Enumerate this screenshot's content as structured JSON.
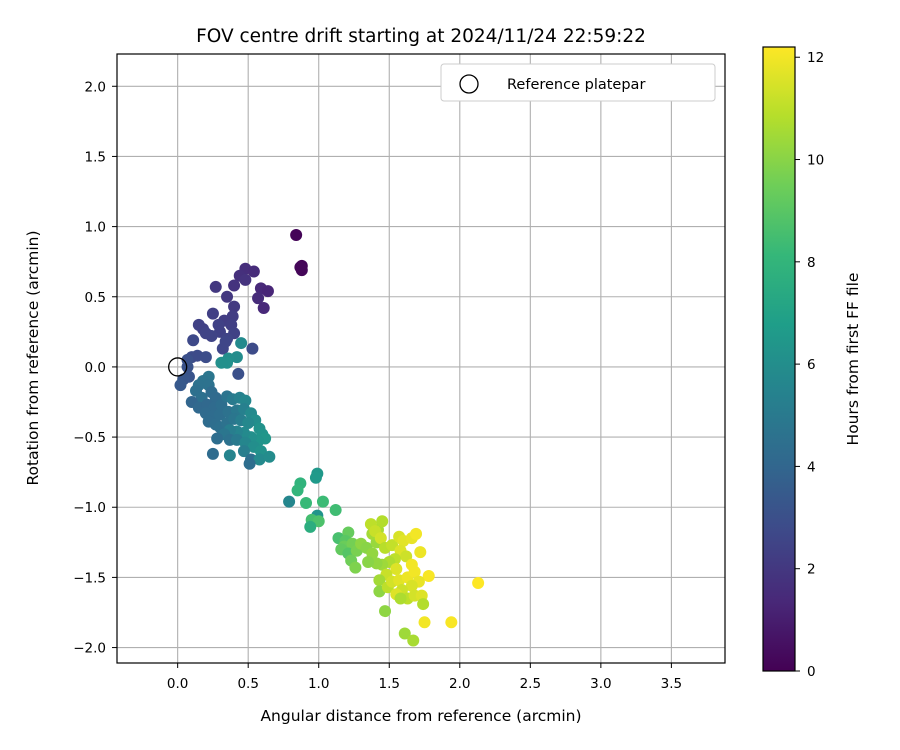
{
  "chart_data": {
    "type": "scatter",
    "title": "FOV centre drift starting at 2024/11/24 22:59:22",
    "xlabel": "Angular distance from reference (arcmin)",
    "ylabel": "Rotation from reference (arcmin)",
    "xlim": [
      -0.43,
      3.88
    ],
    "ylim": [
      -2.11,
      2.23
    ],
    "x_ticks": [
      0.0,
      0.5,
      1.0,
      1.5,
      2.0,
      2.5,
      3.0,
      3.5
    ],
    "x_tick_labels": [
      "0.0",
      "0.5",
      "1.0",
      "1.5",
      "2.0",
      "2.5",
      "3.0",
      "3.5"
    ],
    "y_ticks": [
      2.0,
      1.5,
      1.0,
      0.5,
      0.0,
      -0.5,
      -1.0,
      -1.5,
      -2.0
    ],
    "y_tick_labels": [
      "2.0",
      "1.5",
      "1.0",
      "0.5",
      "0.0",
      "−0.5",
      "−1.0",
      "−1.5",
      "−2.0"
    ],
    "grid": true,
    "legend": {
      "entries": [
        "Reference platepar"
      ],
      "placement": "upper right"
    },
    "reference_point": {
      "x": 0.0,
      "y": 0.0
    },
    "colorbar": {
      "label": "Hours from first FF file",
      "cmap": "viridis",
      "range": [
        0,
        12.2
      ],
      "ticks": [
        0,
        2,
        4,
        6,
        8,
        10,
        12
      ],
      "tick_labels": [
        "0",
        "2",
        "4",
        "6",
        "8",
        "10",
        "12"
      ]
    },
    "colors": {
      "cmap_stops": [
        "#440154",
        "#482878",
        "#3e4989",
        "#31688e",
        "#26828e",
        "#1f9e89",
        "#35b779",
        "#6ece58",
        "#b5de2b",
        "#fde725"
      ]
    },
    "points": [
      [
        0.84,
        0.94,
        0.1
      ],
      [
        0.88,
        0.72,
        0.1
      ],
      [
        0.88,
        0.69,
        0.2
      ],
      [
        0.87,
        0.71,
        0.2
      ],
      [
        0.48,
        0.7,
        1.6
      ],
      [
        0.54,
        0.68,
        1.5
      ],
      [
        0.44,
        0.65,
        1.7
      ],
      [
        0.4,
        0.58,
        1.8
      ],
      [
        0.48,
        0.62,
        1.8
      ],
      [
        0.59,
        0.56,
        1.4
      ],
      [
        0.64,
        0.54,
        1.3
      ],
      [
        0.57,
        0.49,
        1.5
      ],
      [
        0.61,
        0.42,
        1.4
      ],
      [
        0.27,
        0.57,
        2.0
      ],
      [
        0.35,
        0.5,
        2.0
      ],
      [
        0.4,
        0.43,
        2.1
      ],
      [
        0.39,
        0.36,
        2.2
      ],
      [
        0.33,
        0.33,
        2.2
      ],
      [
        0.25,
        0.38,
        2.3
      ],
      [
        0.38,
        0.3,
        2.3
      ],
      [
        0.15,
        0.3,
        2.4
      ],
      [
        0.18,
        0.27,
        2.4
      ],
      [
        0.29,
        0.3,
        2.4
      ],
      [
        0.3,
        0.25,
        2.4
      ],
      [
        0.2,
        0.24,
        2.5
      ],
      [
        0.4,
        0.24,
        2.4
      ],
      [
        0.35,
        0.2,
        2.5
      ],
      [
        0.24,
        0.22,
        2.5
      ],
      [
        0.32,
        0.13,
        2.6
      ],
      [
        0.34,
        0.18,
        2.6
      ],
      [
        0.53,
        0.13,
        2.8
      ],
      [
        0.11,
        0.19,
        2.7
      ],
      [
        0.1,
        0.07,
        2.8
      ],
      [
        0.14,
        0.08,
        2.8
      ],
      [
        0.2,
        0.07,
        2.9
      ],
      [
        0.07,
        0.05,
        3.0
      ],
      [
        0.45,
        0.17,
        5.8
      ],
      [
        0.42,
        0.07,
        5.9
      ],
      [
        0.36,
        0.06,
        6.0
      ],
      [
        0.35,
        0.03,
        6.1
      ],
      [
        0.31,
        0.03,
        6.1
      ],
      [
        0.43,
        -0.05,
        3.0
      ],
      [
        0.07,
        0.0,
        3.1
      ],
      [
        0.08,
        -0.07,
        3.2
      ],
      [
        0.04,
        -0.09,
        3.3
      ],
      [
        0.02,
        -0.13,
        3.4
      ],
      [
        0.22,
        -0.07,
        4.8
      ],
      [
        0.18,
        -0.1,
        4.7
      ],
      [
        0.15,
        -0.13,
        4.6
      ],
      [
        0.22,
        -0.13,
        4.6
      ],
      [
        0.13,
        -0.17,
        4.5
      ],
      [
        0.17,
        -0.22,
        4.5
      ],
      [
        0.24,
        -0.18,
        4.3
      ],
      [
        0.27,
        -0.22,
        4.2
      ],
      [
        0.1,
        -0.25,
        4.0
      ],
      [
        0.15,
        -0.29,
        4.1
      ],
      [
        0.21,
        -0.27,
        4.1
      ],
      [
        0.26,
        -0.29,
        4.2
      ],
      [
        0.31,
        -0.27,
        4.4
      ],
      [
        0.35,
        -0.21,
        4.7
      ],
      [
        0.39,
        -0.23,
        5.0
      ],
      [
        0.44,
        -0.22,
        5.3
      ],
      [
        0.48,
        -0.24,
        5.6
      ],
      [
        0.2,
        -0.33,
        4.2
      ],
      [
        0.25,
        -0.35,
        4.3
      ],
      [
        0.3,
        -0.34,
        4.4
      ],
      [
        0.36,
        -0.32,
        4.6
      ],
      [
        0.42,
        -0.31,
        4.9
      ],
      [
        0.47,
        -0.3,
        5.3
      ],
      [
        0.52,
        -0.33,
        5.8
      ],
      [
        0.55,
        -0.38,
        6.0
      ],
      [
        0.22,
        -0.39,
        4.3
      ],
      [
        0.27,
        -0.41,
        4.4
      ],
      [
        0.3,
        -0.43,
        4.5
      ],
      [
        0.35,
        -0.4,
        4.6
      ],
      [
        0.4,
        -0.37,
        4.8
      ],
      [
        0.45,
        -0.38,
        5.2
      ],
      [
        0.5,
        -0.4,
        5.7
      ],
      [
        0.58,
        -0.44,
        6.2
      ],
      [
        0.6,
        -0.48,
        6.3
      ],
      [
        0.62,
        -0.51,
        6.4
      ],
      [
        0.57,
        -0.53,
        6.3
      ],
      [
        0.52,
        -0.5,
        6.1
      ],
      [
        0.47,
        -0.47,
        5.8
      ],
      [
        0.42,
        -0.46,
        5.5
      ],
      [
        0.37,
        -0.45,
        5.2
      ],
      [
        0.33,
        -0.48,
        4.8
      ],
      [
        0.37,
        -0.52,
        4.6
      ],
      [
        0.28,
        -0.51,
        4.4
      ],
      [
        0.42,
        -0.52,
        5.0
      ],
      [
        0.48,
        -0.54,
        5.6
      ],
      [
        0.54,
        -0.57,
        6.0
      ],
      [
        0.59,
        -0.6,
        6.2
      ],
      [
        0.25,
        -0.62,
        4.3
      ],
      [
        0.37,
        -0.63,
        5.5
      ],
      [
        0.47,
        -0.6,
        5.2
      ],
      [
        0.52,
        -0.66,
        4.5
      ],
      [
        0.58,
        -0.66,
        5.8
      ],
      [
        0.51,
        -0.69,
        4.4
      ],
      [
        0.65,
        -0.64,
        5.9
      ],
      [
        0.79,
        -0.96,
        5.6
      ],
      [
        0.99,
        -0.76,
        6.5
      ],
      [
        0.98,
        -0.79,
        6.6
      ],
      [
        0.87,
        -0.83,
        7.9
      ],
      [
        0.85,
        -0.88,
        8.0
      ],
      [
        0.91,
        -0.97,
        8.2
      ],
      [
        1.03,
        -0.96,
        8.3
      ],
      [
        1.12,
        -1.02,
        8.4
      ],
      [
        0.99,
        -1.06,
        6.3
      ],
      [
        0.95,
        -1.09,
        8.5
      ],
      [
        1.0,
        -1.1,
        8.7
      ],
      [
        0.94,
        -1.14,
        7.6
      ],
      [
        1.14,
        -1.22,
        8.6
      ],
      [
        1.21,
        -1.18,
        9.3
      ],
      [
        1.19,
        -1.24,
        9.0
      ],
      [
        1.18,
        -1.28,
        9.4
      ],
      [
        1.24,
        -1.26,
        9.6
      ],
      [
        1.16,
        -1.3,
        9.2
      ],
      [
        1.21,
        -1.33,
        8.9
      ],
      [
        1.27,
        -1.31,
        9.7
      ],
      [
        1.23,
        -1.38,
        9.5
      ],
      [
        1.26,
        -1.43,
        9.8
      ],
      [
        1.3,
        -1.26,
        10.1
      ],
      [
        1.34,
        -1.29,
        10.0
      ],
      [
        1.38,
        -1.33,
        10.2
      ],
      [
        1.41,
        -1.25,
        10.3
      ],
      [
        1.38,
        -1.19,
        10.5
      ],
      [
        1.42,
        -1.16,
        10.6
      ],
      [
        1.45,
        -1.1,
        10.8
      ],
      [
        1.37,
        -1.12,
        11.0
      ],
      [
        1.4,
        -1.17,
        11.2
      ],
      [
        1.44,
        -1.22,
        11.4
      ],
      [
        1.47,
        -1.29,
        10.9
      ],
      [
        1.52,
        -1.27,
        11.1
      ],
      [
        1.57,
        -1.21,
        11.5
      ],
      [
        1.6,
        -1.24,
        11.7
      ],
      [
        1.66,
        -1.22,
        11.8
      ],
      [
        1.69,
        -1.19,
        12.0
      ],
      [
        1.58,
        -1.31,
        11.6
      ],
      [
        1.62,
        -1.35,
        11.3
      ],
      [
        1.54,
        -1.37,
        11.0
      ],
      [
        1.5,
        -1.39,
        10.7
      ],
      [
        1.45,
        -1.41,
        10.4
      ],
      [
        1.41,
        -1.4,
        10.2
      ],
      [
        1.35,
        -1.39,
        10.0
      ],
      [
        1.72,
        -1.32,
        11.9
      ],
      [
        1.66,
        -1.41,
        12.0
      ],
      [
        1.55,
        -1.44,
        11.6
      ],
      [
        1.48,
        -1.48,
        11.2
      ],
      [
        1.43,
        -1.52,
        10.5
      ],
      [
        1.43,
        -1.6,
        10.1
      ],
      [
        1.49,
        -1.57,
        11.0
      ],
      [
        1.52,
        -1.53,
        11.4
      ],
      [
        1.57,
        -1.52,
        11.7
      ],
      [
        1.63,
        -1.5,
        11.9
      ],
      [
        1.68,
        -1.46,
        12.0
      ],
      [
        1.78,
        -1.49,
        12.1
      ],
      [
        1.71,
        -1.53,
        11.8
      ],
      [
        1.66,
        -1.56,
        11.5
      ],
      [
        1.59,
        -1.59,
        11.3
      ],
      [
        1.55,
        -1.62,
        11.6
      ],
      [
        1.63,
        -1.65,
        11.0
      ],
      [
        1.68,
        -1.63,
        11.4
      ],
      [
        1.73,
        -1.63,
        11.6
      ],
      [
        1.58,
        -1.65,
        10.7
      ],
      [
        1.74,
        -1.69,
        10.8
      ],
      [
        1.47,
        -1.74,
        10.1
      ],
      [
        1.75,
        -1.82,
        12.0
      ],
      [
        1.94,
        -1.82,
        12.1
      ],
      [
        2.13,
        -1.54,
        12.2
      ],
      [
        1.61,
        -1.9,
        10.4
      ],
      [
        1.67,
        -1.95,
        10.6
      ]
    ]
  }
}
